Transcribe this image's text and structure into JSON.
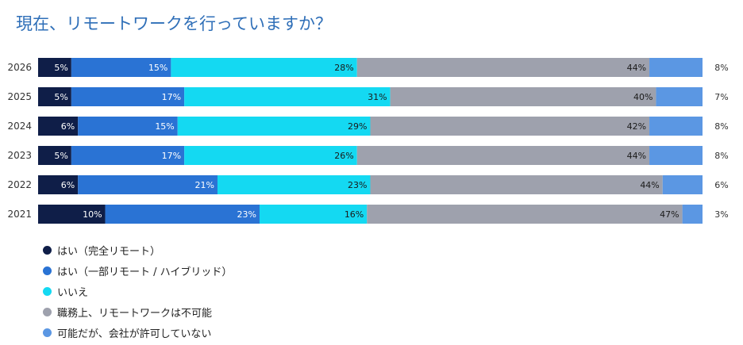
{
  "chart_data": {
    "type": "bar",
    "stacked": true,
    "orientation": "horizontal",
    "normalized_percent": true,
    "title": "現在、リモートワークを行っていますか？",
    "xlabel": "",
    "ylabel": "",
    "grid": false,
    "legend_position": "bottom-left",
    "categories": [
      "2026",
      "2025",
      "2024",
      "2023",
      "2022",
      "2021"
    ],
    "series": [
      {
        "name": "はい（完全リモート）",
        "color": "#0f1e48",
        "label_color": "#ffffff",
        "values": [
          5,
          5,
          6,
          5,
          6,
          10
        ],
        "labels": [
          "5%",
          "5%",
          "6%",
          "5%",
          "6%",
          "10%"
        ]
      },
      {
        "name": "はい（一部リモート / ハイブリッド）",
        "color": "#2a73d4",
        "label_color": "#ffffff",
        "values": [
          15,
          17,
          15,
          17,
          21,
          23
        ],
        "labels": [
          "15%",
          "17%",
          "15%",
          "17%",
          "21%",
          "23%"
        ]
      },
      {
        "name": "いいえ",
        "color": "#14d9f2",
        "label_color": "#1a1a1a",
        "values": [
          28,
          31,
          29,
          26,
          23,
          16
        ],
        "labels": [
          "28%",
          "31%",
          "29%",
          "26%",
          "23%",
          "16%"
        ]
      },
      {
        "name": "職務上、リモートワークは不可能",
        "color": "#9ea1ad",
        "label_color": "#1a1a1a",
        "values": [
          44,
          40,
          42,
          44,
          44,
          47
        ],
        "labels": [
          "44%",
          "40%",
          "42%",
          "44%",
          "44%",
          "47%"
        ]
      },
      {
        "name": "可能だが、会社が許可していない",
        "color": "#5b97e3",
        "label_color": "#1a1a1a",
        "label_outside": true,
        "values": [
          8,
          7,
          8,
          8,
          6,
          3
        ],
        "labels": [
          "8%",
          "7%",
          "8%",
          "8%",
          "6%",
          "3%"
        ]
      }
    ]
  }
}
